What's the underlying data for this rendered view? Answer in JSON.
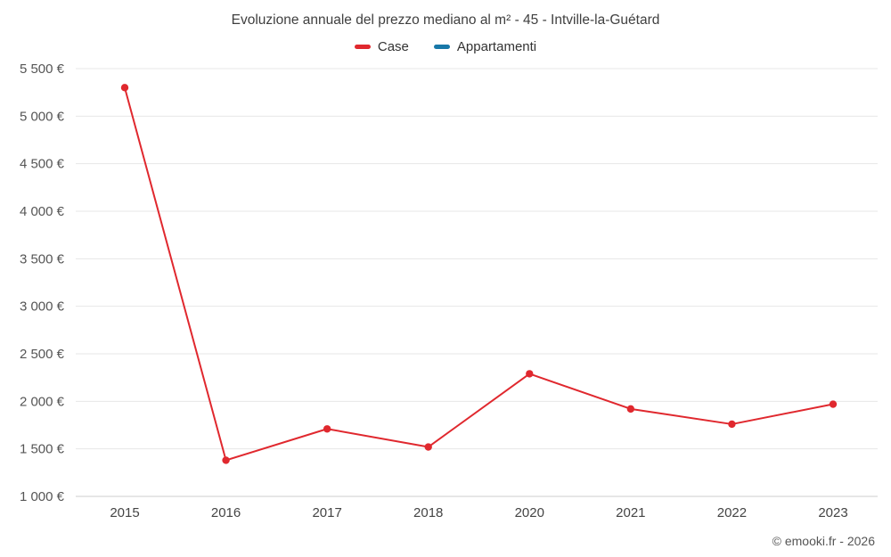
{
  "title": "Evoluzione annuale del prezzo mediano al m² - 45 - Intville-la-Guétard",
  "legend": [
    {
      "label": "Case",
      "color": "#e0282e"
    },
    {
      "label": "Appartamenti",
      "color": "#1878a8"
    }
  ],
  "footer": "© emooki.fr - 2026",
  "chart_data": {
    "type": "line",
    "title": "Evoluzione annuale del prezzo mediano al m² - 45 - Intville-la-Guétard",
    "categories": [
      "2015",
      "2016",
      "2017",
      "2018",
      "2020",
      "2021",
      "2022",
      "2023"
    ],
    "series": [
      {
        "name": "Case",
        "color": "#e0282e",
        "values": [
          5300,
          1380,
          1710,
          1520,
          2290,
          1920,
          1760,
          1970
        ]
      },
      {
        "name": "Appartamenti",
        "color": "#1878a8",
        "values": []
      }
    ],
    "ylim": [
      1000,
      5500
    ],
    "ytick_step": 500,
    "ytick_labels": [
      "1 000 €",
      "1 500 €",
      "2 000 €",
      "2 500 €",
      "3 000 €",
      "3 500 €",
      "4 000 €",
      "4 500 €",
      "5 000 €",
      "5 500 €"
    ],
    "xlabel": "",
    "ylabel": "",
    "grid": true,
    "legend_position": "top"
  }
}
